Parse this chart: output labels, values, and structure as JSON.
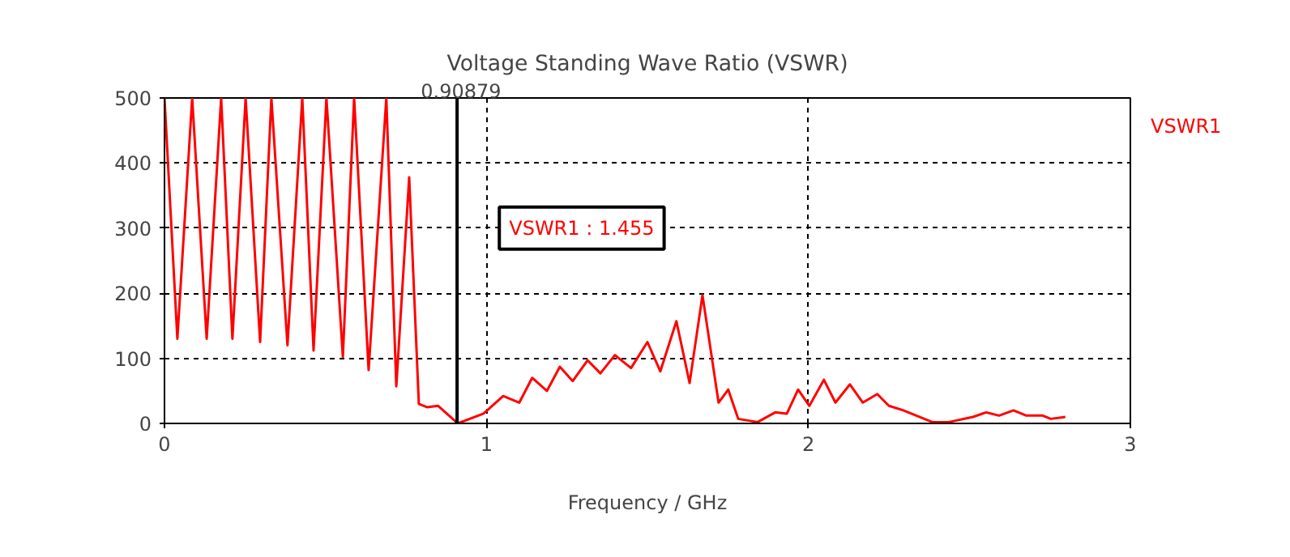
{
  "chart_data": {
    "type": "line",
    "title": "Voltage Standing Wave Ratio (VSWR)",
    "xlabel": "Frequency / GHz",
    "xlim": [
      0,
      3
    ],
    "ylim": [
      0,
      500
    ],
    "xticks": [
      0,
      1,
      2,
      3
    ],
    "yticks": [
      0,
      100,
      200,
      300,
      400,
      500
    ],
    "grid": true,
    "ref_lines": [
      {
        "axis": "x",
        "value": 0.90879,
        "label": "0.90879",
        "color": "#000000"
      }
    ],
    "annotations": [
      "VSWR1 : 1.455"
    ],
    "series": [
      {
        "name": "VSWR1",
        "color": "#ff0000",
        "x": [
          0,
          0.04,
          0.086,
          0.131,
          0.176,
          0.211,
          0.252,
          0.297,
          0.332,
          0.382,
          0.428,
          0.463,
          0.503,
          0.554,
          0.589,
          0.634,
          0.689,
          0.72,
          0.76,
          0.79,
          0.815,
          0.85,
          0.911,
          0.991,
          1.052,
          1.102,
          1.142,
          1.188,
          1.228,
          1.268,
          1.314,
          1.354,
          1.399,
          1.449,
          1.5,
          1.54,
          1.59,
          1.631,
          1.671,
          1.721,
          1.751,
          1.782,
          1.842,
          1.897,
          1.933,
          1.968,
          2.003,
          2.048,
          2.084,
          2.129,
          2.169,
          2.214,
          2.25,
          2.295,
          2.385,
          2.436,
          2.511,
          2.552,
          2.592,
          2.637,
          2.677,
          2.728,
          2.753,
          2.798
        ],
        "values": [
          500,
          130,
          500,
          130,
          500,
          130,
          500,
          125,
          500,
          120,
          500,
          112,
          500,
          102,
          500,
          82,
          500,
          57,
          378,
          30,
          25,
          27,
          0,
          15,
          42,
          32,
          70,
          50,
          87,
          65,
          97,
          77,
          105,
          85,
          125,
          80,
          157,
          62,
          197,
          32,
          52,
          7,
          2,
          17,
          15,
          52,
          27,
          67,
          32,
          60,
          32,
          45,
          27,
          20,
          2,
          2,
          10,
          17,
          12,
          20,
          12,
          12,
          7,
          10
        ]
      }
    ]
  }
}
